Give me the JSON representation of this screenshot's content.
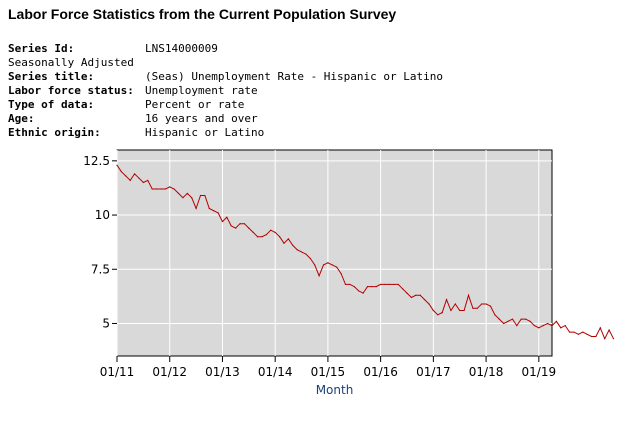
{
  "header": {
    "title": "Labor Force Statistics from the Current Population Survey"
  },
  "meta": {
    "series_id_label": "Series Id:",
    "series_id": "LNS14000009",
    "seasonal": "Seasonally Adjusted",
    "series_title_label": "Series title:",
    "series_title": "(Seas) Unemployment Rate - Hispanic or Latino",
    "status_label": "Labor force status:",
    "status": "Unemployment rate",
    "type_label": "Type of data:",
    "type": "Percent or rate",
    "age_label": "Age:",
    "age": "16 years and over",
    "ethnic_label": "Ethnic origin:",
    "ethnic": "Hispanic or Latino"
  },
  "chart_data": {
    "type": "line",
    "xlabel": "Month",
    "ylabel": "",
    "x_range": [
      "2011-01",
      "2019-04"
    ],
    "ylim": [
      3.5,
      13
    ],
    "yticks": [
      5,
      7.5,
      10,
      12.5
    ],
    "ytick_labels": [
      "5",
      "7.5",
      "10",
      "12.5"
    ],
    "xticks": [
      "2011-01",
      "2012-01",
      "2013-01",
      "2014-01",
      "2015-01",
      "2016-01",
      "2017-01",
      "2018-01",
      "2019-01"
    ],
    "xtick_labels": [
      "01/11",
      "01/12",
      "01/13",
      "01/14",
      "01/15",
      "01/16",
      "01/17",
      "01/18",
      "01/19"
    ],
    "grid": true,
    "background": "#d9d9d9",
    "line_color": "#b30000",
    "series": [
      {
        "start": "2011-01",
        "values": [
          12.3,
          12.0,
          11.8,
          11.6,
          11.9,
          11.7,
          11.5,
          11.6,
          11.2,
          11.2,
          11.2,
          11.2,
          11.3,
          11.2,
          11.0,
          10.8,
          11.0,
          10.8,
          10.3,
          10.9,
          10.9,
          10.3,
          10.2,
          10.1,
          9.7,
          9.9,
          9.5,
          9.4,
          9.6,
          9.6,
          9.4,
          9.2,
          9.0,
          9.0,
          9.1,
          9.3,
          9.2,
          9.0,
          8.7,
          8.9,
          8.6,
          8.4,
          8.3,
          8.2,
          8.0,
          7.7,
          7.2,
          7.7,
          7.8,
          7.7,
          7.6,
          7.3,
          6.8,
          6.8,
          6.7,
          6.5,
          6.4,
          6.7,
          6.7,
          6.7,
          6.8,
          6.8,
          6.8,
          6.8,
          6.8,
          6.6,
          6.4,
          6.2,
          6.3,
          6.3,
          6.1,
          5.9,
          5.6,
          5.4,
          5.5,
          6.1,
          5.6,
          5.9,
          5.6,
          5.6,
          6.3,
          5.7,
          5.7,
          5.9,
          5.9,
          5.8,
          5.4,
          5.2,
          5.0,
          5.1,
          5.2,
          4.9,
          5.2,
          5.2,
          5.1,
          4.9,
          4.8,
          4.9,
          5.0,
          4.9,
          5.1,
          4.8,
          4.9,
          4.6,
          4.6,
          4.5,
          4.6,
          4.5,
          4.4,
          4.4,
          4.8,
          4.3,
          4.7,
          4.3
        ]
      }
    ]
  }
}
